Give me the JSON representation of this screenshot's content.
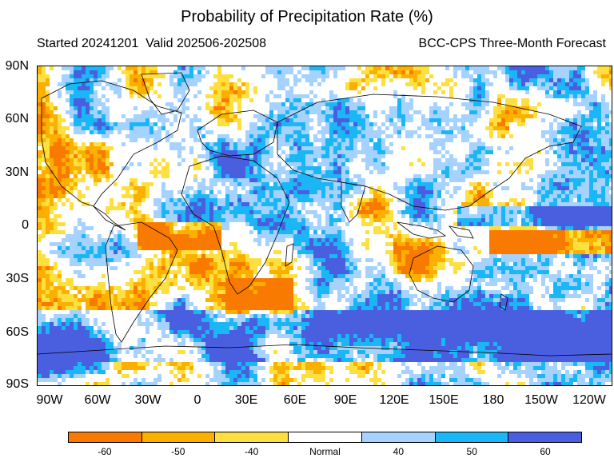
{
  "header": {
    "title": "Probability of Precipitation Rate (%)",
    "started": "Started 20241201",
    "valid": "Valid 202506-202508",
    "source": "BCC-CPS Three-Month Forecast"
  },
  "axes": {
    "lat_labels": [
      "90N",
      "60N",
      "30N",
      "0",
      "30S",
      "60S",
      "90S"
    ],
    "lon_labels": [
      "90W",
      "60W",
      "30W",
      "0",
      "30E",
      "60E",
      "90E",
      "120E",
      "150E",
      "180",
      "150W",
      "120W"
    ]
  },
  "legend": {
    "categories": [
      {
        "label": "-60",
        "color": "#f97a00"
      },
      {
        "label": "-50",
        "color": "#fbb000"
      },
      {
        "label": "-40",
        "color": "#fde040"
      },
      {
        "label": "Normal",
        "color": "#ffffff"
      },
      {
        "label": "40",
        "color": "#a6d2ff"
      },
      {
        "label": "50",
        "color": "#1ab6f5"
      },
      {
        "label": "60",
        "color": "#4a5ee0"
      }
    ]
  },
  "colors": {
    "coastline": "#000000"
  }
}
